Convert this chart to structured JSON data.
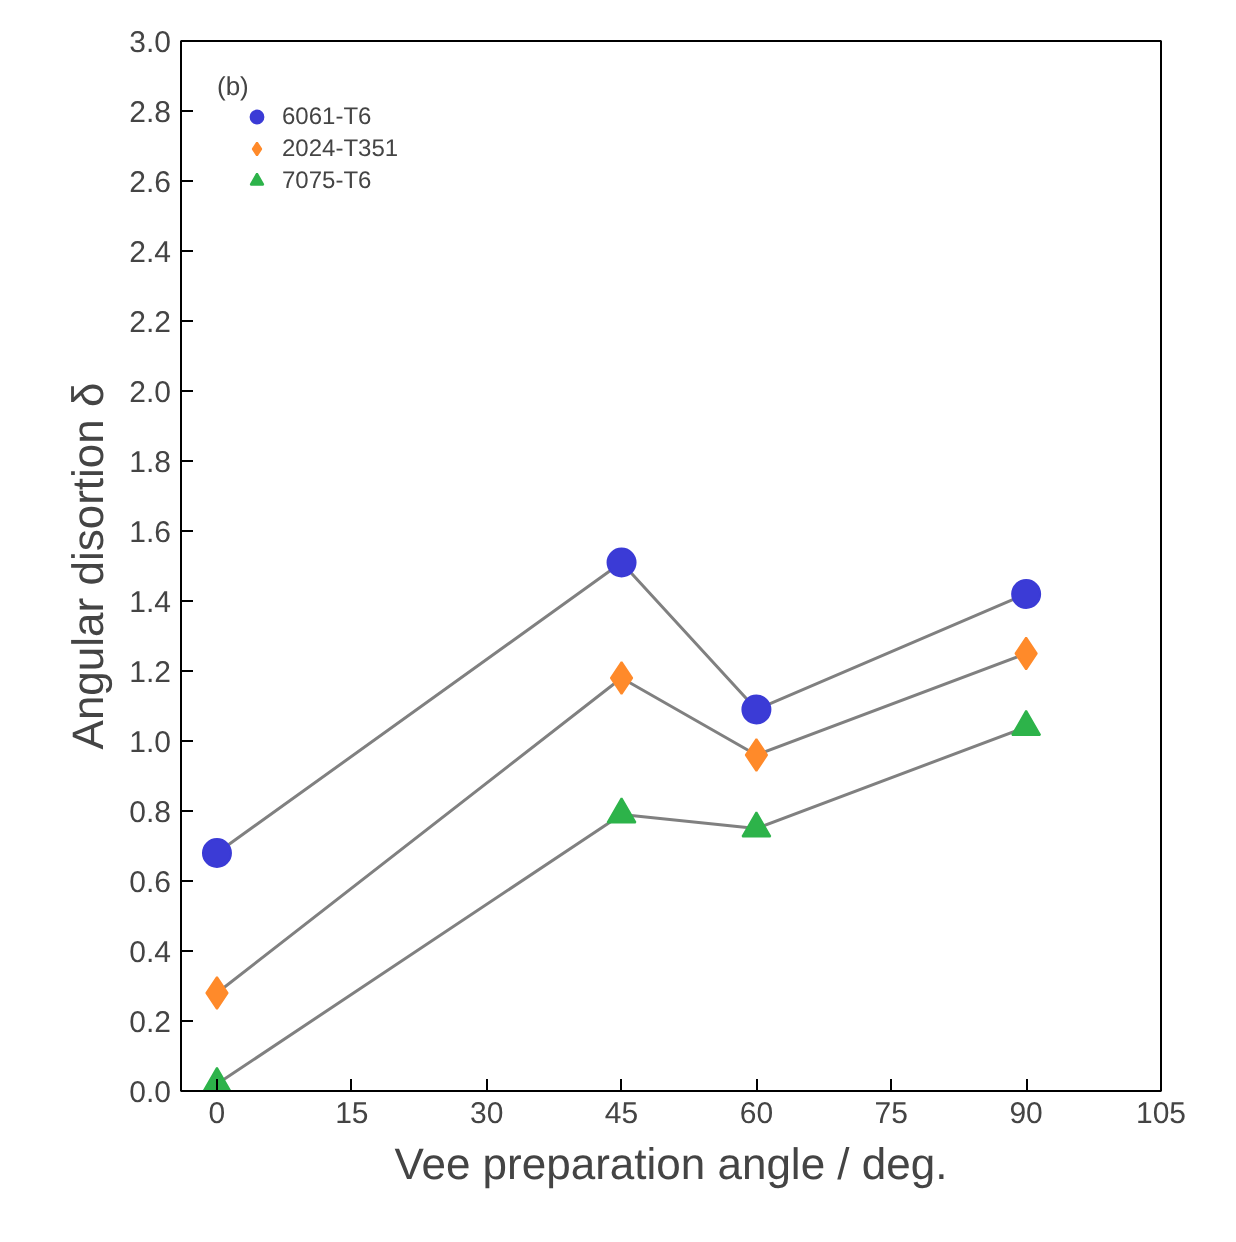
{
  "chart_data": {
    "type": "line",
    "xlabel": "Vee preparation angle / deg.",
    "ylabel": "Angular disortion δ",
    "annotations": [
      "(b)"
    ],
    "x": [
      0,
      45,
      60,
      90
    ],
    "series": [
      {
        "name": "6061-T6",
        "color": "#3b3bd6",
        "marker": "circle",
        "values": [
          0.68,
          1.51,
          1.09,
          1.42
        ]
      },
      {
        "name": "2024-T351",
        "color": "#ff8a2a",
        "marker": "diamond",
        "values": [
          0.28,
          1.18,
          0.96,
          1.25
        ]
      },
      {
        "name": "7075-T6",
        "color": "#2db34a",
        "marker": "triangle",
        "values": [
          0.02,
          0.79,
          0.75,
          1.04
        ]
      }
    ],
    "xlim": [
      -4,
      105
    ],
    "xticks": [
      0,
      15,
      30,
      45,
      60,
      75,
      90,
      105
    ],
    "ylim": [
      0,
      3
    ],
    "yticks": [
      {
        "value": 0,
        "label": "0.0"
      },
      {
        "value": 0.2,
        "label": "0.2"
      },
      {
        "value": 0.4,
        "label": "0.4"
      },
      {
        "value": 0.6,
        "label": "0.6"
      },
      {
        "value": 0.8,
        "label": "0.8"
      },
      {
        "value": 1,
        "label": "1.0"
      },
      {
        "value": 1.2,
        "label": "1.2"
      },
      {
        "value": 1.4,
        "label": "1.4"
      },
      {
        "value": 1.6,
        "label": "1.6"
      },
      {
        "value": 1.8,
        "label": "1.8"
      },
      {
        "value": 2,
        "label": "2.0"
      },
      {
        "value": 2.2,
        "label": "2.2"
      },
      {
        "value": 2.4,
        "label": "2.4"
      },
      {
        "value": 2.6,
        "label": "2.6"
      },
      {
        "value": 2.8,
        "label": "2.8"
      },
      {
        "value": 3,
        "label": "3.0"
      }
    ],
    "grid": false,
    "legend": "top left",
    "line_style": "solid"
  }
}
